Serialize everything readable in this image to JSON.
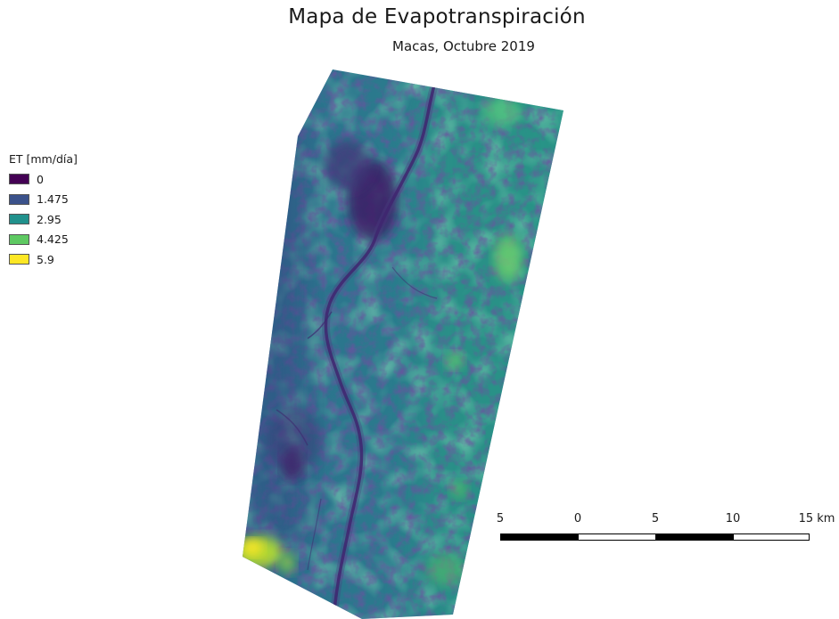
{
  "map": {
    "title": "Mapa de Evapotranspiración",
    "subtitle": "Macas, Octubre 2019"
  },
  "legend": {
    "title": "ET [mm/día]",
    "items": [
      {
        "label": "0",
        "color": "#440154"
      },
      {
        "label": "1.475",
        "color": "#3b528b"
      },
      {
        "label": "2.95",
        "color": "#21918c"
      },
      {
        "label": "4.425",
        "color": "#5ec962"
      },
      {
        "label": "5.9",
        "color": "#fde725"
      }
    ]
  },
  "scalebar": {
    "labels": [
      "5",
      "0",
      "5",
      "10",
      "15 km"
    ],
    "segment_colors": [
      "#000000",
      "#ffffff",
      "#000000",
      "#ffffff"
    ]
  }
}
